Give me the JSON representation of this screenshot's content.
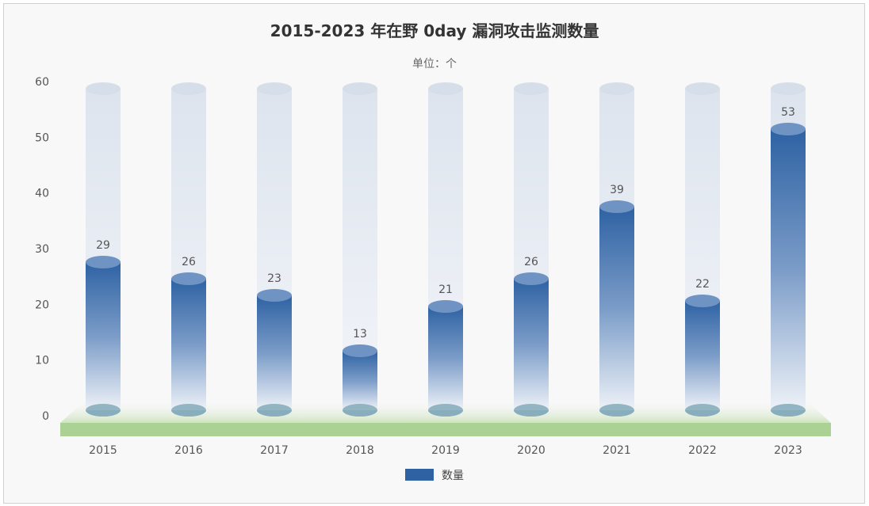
{
  "chart_data": {
    "type": "bar",
    "title": "2015-2023 年在野 0day 漏洞攻击监测数量",
    "subtitle": "单位：个",
    "categories": [
      "2015",
      "2016",
      "2017",
      "2018",
      "2019",
      "2020",
      "2021",
      "2022",
      "2023"
    ],
    "series": [
      {
        "name": "数量",
        "values": [
          29,
          26,
          23,
          13,
          21,
          26,
          39,
          22,
          53
        ],
        "color": "#2e62a3"
      }
    ],
    "ylim": [
      0,
      60
    ],
    "yticks": [
      0,
      10,
      20,
      30,
      40,
      50,
      60
    ],
    "grid": false,
    "legend": "bottom",
    "style": "3d-cylinder",
    "floor_color": "#acd194"
  }
}
